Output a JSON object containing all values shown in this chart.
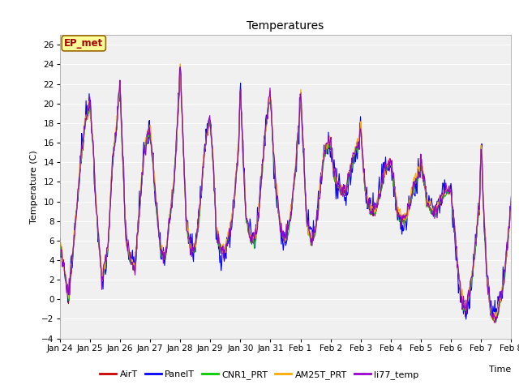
{
  "title": "Temperatures",
  "ylabel": "Temperature (C)",
  "xlabel": "Time",
  "annotation": "EP_met",
  "ylim": [
    -4,
    27
  ],
  "yticks": [
    -4,
    -2,
    0,
    2,
    4,
    6,
    8,
    10,
    12,
    14,
    16,
    18,
    20,
    22,
    24,
    26
  ],
  "xtick_labels": [
    "Jan 24",
    "Jan 25",
    "Jan 26",
    "Jan 27",
    "Jan 28",
    "Jan 29",
    "Jan 30",
    "Jan 31",
    "Feb 1",
    "Feb 2",
    "Feb 3",
    "Feb 4",
    "Feb 5",
    "Feb 6",
    "Feb 7",
    "Feb 8"
  ],
  "series_names": [
    "AirT",
    "PanelT",
    "CNR1_PRT",
    "AM25T_PRT",
    "li77_temp"
  ],
  "series_colors": [
    "#cc0000",
    "#0000ff",
    "#00cc00",
    "#ffaa00",
    "#9900cc"
  ],
  "background_color": "#ffffff",
  "plot_bg_color": "#f0f0f0",
  "grid_color": "#ffffff",
  "title_fontsize": 10,
  "axis_fontsize": 8,
  "tick_fontsize": 7.5,
  "legend_fontsize": 8,
  "n_days": 15,
  "pts_per_day": 48,
  "control_points": [
    [
      0.0,
      6
    ],
    [
      0.15,
      3
    ],
    [
      0.3,
      0
    ],
    [
      0.5,
      7
    ],
    [
      0.7,
      14
    ],
    [
      0.85,
      18
    ],
    [
      1.0,
      20
    ],
    [
      1.1,
      16
    ],
    [
      1.2,
      10
    ],
    [
      1.4,
      2
    ],
    [
      1.6,
      5
    ],
    [
      1.75,
      14
    ],
    [
      1.9,
      18
    ],
    [
      2.0,
      22
    ],
    [
      2.1,
      14
    ],
    [
      2.2,
      6
    ],
    [
      2.35,
      4
    ],
    [
      2.5,
      3
    ],
    [
      2.65,
      9
    ],
    [
      2.8,
      15
    ],
    [
      2.95,
      17
    ],
    [
      3.0,
      17
    ],
    [
      3.1,
      14
    ],
    [
      3.2,
      10
    ],
    [
      3.35,
      5
    ],
    [
      3.5,
      4
    ],
    [
      3.65,
      8
    ],
    [
      3.8,
      12
    ],
    [
      3.95,
      20
    ],
    [
      4.0,
      24
    ],
    [
      4.1,
      16
    ],
    [
      4.2,
      8
    ],
    [
      4.35,
      5
    ],
    [
      4.5,
      5
    ],
    [
      4.65,
      9
    ],
    [
      4.8,
      15
    ],
    [
      4.95,
      18
    ],
    [
      5.0,
      18
    ],
    [
      5.1,
      14
    ],
    [
      5.2,
      7
    ],
    [
      5.35,
      5
    ],
    [
      5.5,
      5
    ],
    [
      5.65,
      7
    ],
    [
      5.8,
      10
    ],
    [
      5.95,
      16
    ],
    [
      6.0,
      22
    ],
    [
      6.1,
      14
    ],
    [
      6.2,
      8
    ],
    [
      6.35,
      6
    ],
    [
      6.5,
      6
    ],
    [
      6.65,
      10
    ],
    [
      6.8,
      16
    ],
    [
      6.95,
      20
    ],
    [
      7.0,
      21
    ],
    [
      7.1,
      15
    ],
    [
      7.2,
      11
    ],
    [
      7.35,
      7
    ],
    [
      7.5,
      6
    ],
    [
      7.65,
      8
    ],
    [
      7.8,
      12
    ],
    [
      7.95,
      18
    ],
    [
      8.0,
      21
    ],
    [
      8.1,
      15
    ],
    [
      8.2,
      8
    ],
    [
      8.35,
      6
    ],
    [
      8.5,
      7
    ],
    [
      8.65,
      11
    ],
    [
      8.8,
      15
    ],
    [
      8.95,
      16
    ],
    [
      9.0,
      16
    ],
    [
      9.1,
      13
    ],
    [
      9.2,
      12
    ],
    [
      9.35,
      11
    ],
    [
      9.5,
      11
    ],
    [
      9.65,
      13
    ],
    [
      9.8,
      15
    ],
    [
      9.95,
      16
    ],
    [
      10.0,
      18
    ],
    [
      10.1,
      13
    ],
    [
      10.2,
      10
    ],
    [
      10.35,
      9
    ],
    [
      10.5,
      9
    ],
    [
      10.65,
      11
    ],
    [
      10.8,
      13
    ],
    [
      10.95,
      14
    ],
    [
      11.0,
      14
    ],
    [
      11.1,
      12
    ],
    [
      11.2,
      9
    ],
    [
      11.35,
      8
    ],
    [
      11.5,
      8
    ],
    [
      11.65,
      10
    ],
    [
      11.8,
      12
    ],
    [
      11.95,
      13
    ],
    [
      12.0,
      14
    ],
    [
      12.1,
      12
    ],
    [
      12.2,
      10
    ],
    [
      12.35,
      9
    ],
    [
      12.5,
      9
    ],
    [
      12.65,
      10
    ],
    [
      12.8,
      11
    ],
    [
      12.95,
      11
    ],
    [
      13.0,
      11
    ],
    [
      13.1,
      8
    ],
    [
      13.2,
      4
    ],
    [
      13.35,
      0
    ],
    [
      13.5,
      -1
    ],
    [
      13.65,
      1
    ],
    [
      13.8,
      5
    ],
    [
      13.95,
      10
    ],
    [
      14.0,
      16
    ],
    [
      14.1,
      8
    ],
    [
      14.2,
      2
    ],
    [
      14.35,
      -2
    ],
    [
      14.5,
      -2
    ],
    [
      14.65,
      0
    ],
    [
      14.8,
      3
    ],
    [
      14.95,
      8
    ],
    [
      15.0,
      10
    ]
  ]
}
